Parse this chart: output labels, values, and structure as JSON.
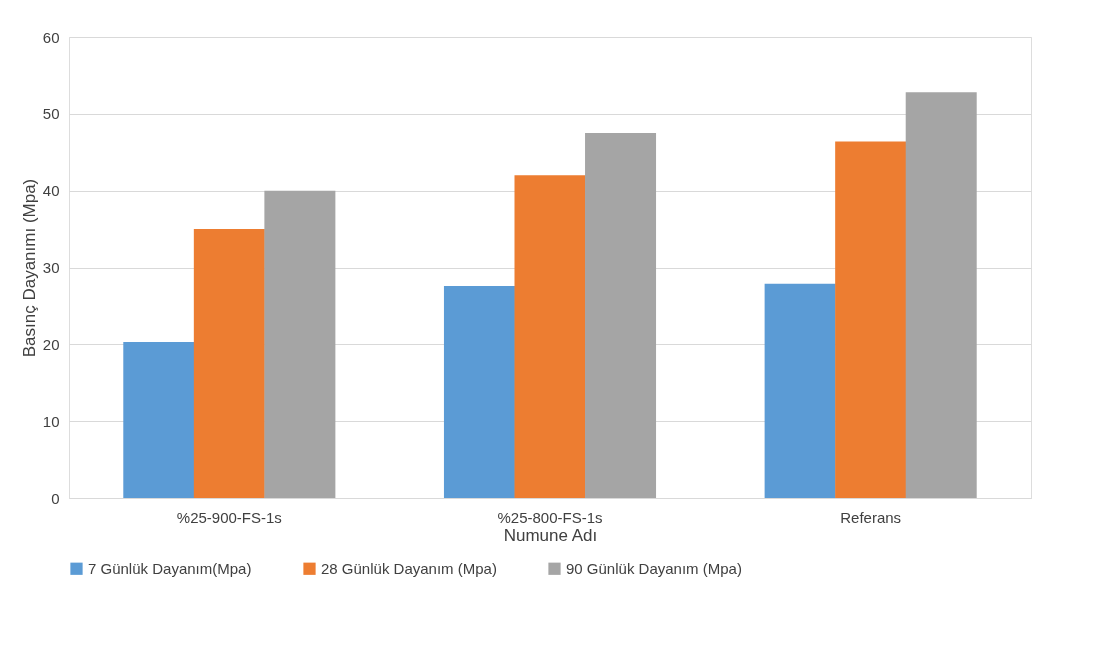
{
  "chart_data": {
    "type": "bar",
    "xlabel": "Numune Adı",
    "ylabel": "Basınç Dayanımı (Mpa)",
    "categories": [
      "%25-900-FS-1s",
      "%25-800-FS-1s",
      "Referans"
    ],
    "series": [
      {
        "name": "7 Günlük Dayanım(Mpa)",
        "color": "#5b9bd5",
        "values": [
          20.3,
          27.6,
          27.9
        ]
      },
      {
        "name": "28 Günlük Dayanım (Mpa)",
        "color": "#ed7d31",
        "values": [
          35.0,
          42.0,
          46.4
        ]
      },
      {
        "name": "90 Günlük Dayanım (Mpa)",
        "color": "#a5a5a5",
        "values": [
          40.0,
          47.5,
          52.8
        ]
      }
    ],
    "ylim": [
      0,
      60
    ],
    "yticks": [
      0,
      10,
      20,
      30,
      40,
      50,
      60
    ],
    "grid": "y",
    "legend": "bottom"
  }
}
